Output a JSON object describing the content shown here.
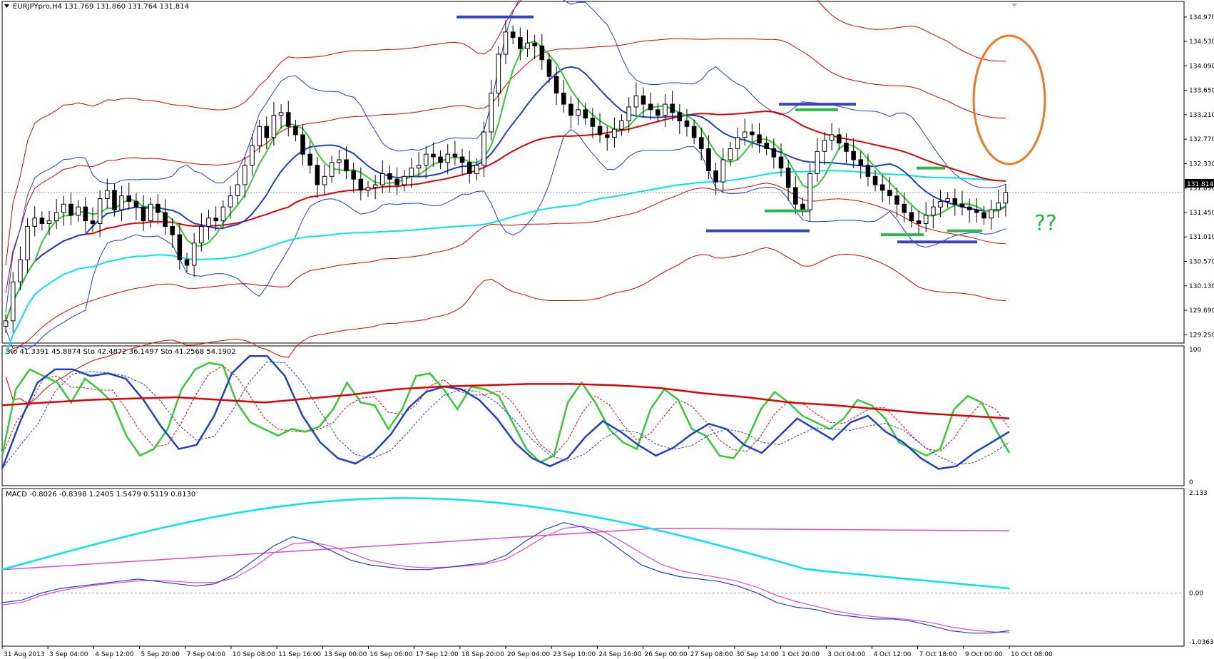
{
  "main_panel": {
    "info": "EURJPYpro,H4  131.769 131.860 131.764 131.814",
    "current_price": "131.814",
    "price_min": 129.1,
    "price_max": 135.25,
    "price_ticks": [
      "134.970",
      "134.530",
      "134.090",
      "133.650",
      "133.210",
      "132.770",
      "132.330",
      "131.890",
      "131.450",
      "131.010",
      "130.570",
      "130.130",
      "129.690",
      "129.250"
    ],
    "annotation_text": "??"
  },
  "stoch_panel": {
    "info": "Sto 41.3391 45.8874  Sto 42.4872 36.1497  Sto 41.2568 54.1902",
    "ticks": [
      "100",
      "0"
    ]
  },
  "macd_panel": {
    "info": "MACD -0.8026 -0.8398 1.2405 1.5479 0.5119 0.8130",
    "ticks": [
      "2.133",
      "0.00",
      "-1.0363"
    ]
  },
  "time_axis": [
    "31 Aug 2013",
    "3 Sep 04:00",
    "4 Sep 12:00",
    "5 Sep 20:00",
    "7 Sep 04:00",
    "10 Sep 08:00",
    "11 Sep 16:00",
    "13 Sep 00:00",
    "16 Sep 06:00",
    "17 Sep 12:00",
    "18 Sep 20:00",
    "20 Sep 04:00",
    "23 Sep 10:00",
    "24 Sep 16:00",
    "26 Sep 00:00",
    "27 Sep 08:00",
    "30 Sep 14:00",
    "1 Oct 20:00",
    "3 Oct 04:00",
    "4 Oct 12:00",
    "7 Oct 18:00",
    "9 Oct 00:00",
    "10 Oct 08:00"
  ],
  "chart_data": {
    "type": "candlestick",
    "symbol": "EURJPYpro",
    "timeframe": "H4",
    "ohlc_last": {
      "open": 131.769,
      "high": 131.86,
      "low": 131.764,
      "close": 131.814
    },
    "candles_close": [
      129.5,
      130.2,
      130.6,
      131.2,
      131.35,
      131.25,
      131.3,
      131.45,
      131.6,
      131.4,
      131.55,
      131.3,
      131.25,
      131.7,
      131.85,
      131.5,
      131.75,
      131.65,
      131.55,
      131.3,
      131.6,
      131.45,
      131.2,
      131.05,
      130.6,
      130.5,
      130.9,
      131.2,
      131.35,
      131.3,
      131.55,
      131.75,
      131.95,
      132.3,
      132.65,
      133.0,
      132.8,
      133.2,
      133.25,
      133.0,
      132.85,
      132.5,
      132.3,
      131.95,
      132.1,
      132.35,
      132.4,
      132.2,
      132.05,
      131.85,
      131.9,
      131.95,
      132.15,
      132.05,
      131.95,
      132.1,
      132.25,
      132.3,
      132.5,
      132.45,
      132.35,
      132.5,
      132.45,
      132.35,
      132.15,
      132.3,
      132.9,
      133.6,
      134.3,
      134.7,
      134.6,
      134.4,
      134.5,
      134.45,
      134.2,
      133.9,
      133.6,
      133.4,
      133.2,
      133.3,
      133.15,
      133.0,
      132.85,
      132.8,
      132.95,
      133.1,
      133.35,
      133.55,
      133.4,
      133.3,
      133.2,
      133.4,
      133.25,
      133.1,
      133.0,
      132.8,
      132.6,
      132.2,
      132.0,
      132.4,
      132.6,
      132.8,
      132.9,
      132.85,
      132.7,
      132.6,
      132.45,
      132.25,
      131.9,
      131.6,
      131.5,
      132.15,
      132.55,
      132.75,
      132.85,
      132.7,
      132.55,
      132.4,
      132.3,
      132.1,
      131.95,
      131.85,
      131.75,
      131.6,
      131.45,
      131.3,
      131.25,
      131.4,
      131.55,
      131.65,
      131.7,
      131.6,
      131.55,
      131.5,
      131.45,
      131.35,
      131.5,
      131.62,
      131.814
    ],
    "series": [
      {
        "name": "",
        "color": "#2b9fe0",
        "kind": "moving-average"
      },
      {
        "name": "",
        "color": "#e00000",
        "kind": "envelope"
      }
    ],
    "stochastic": {
      "lines": [
        {
          "color": "#32cd32",
          "values": [
            20,
            70,
            85,
            80,
            75,
            60,
            78,
            70,
            60,
            35,
            20,
            25,
            40,
            70,
            85,
            90,
            88,
            60,
            45,
            40,
            35,
            40,
            38,
            42,
            55,
            75,
            60,
            58,
            40,
            55,
            80,
            82,
            70,
            55,
            72,
            70,
            65,
            45,
            25,
            15,
            20,
            60,
            75,
            60,
            40,
            30,
            25,
            55,
            70,
            62,
            40,
            35,
            20,
            18,
            32,
            55,
            68,
            60,
            50,
            45,
            40,
            48,
            62,
            58,
            48,
            30,
            25,
            20,
            25,
            55,
            65,
            60,
            40,
            22
          ]
        },
        {
          "color": "#1f3fd0",
          "values": [
            10,
            45,
            75,
            85,
            85,
            80,
            82,
            78,
            62,
            42,
            25,
            28,
            50,
            82,
            95,
            95,
            80,
            50,
            30,
            18,
            14,
            22,
            36,
            56,
            68,
            72,
            70,
            62,
            48,
            30,
            18,
            12,
            18,
            34,
            46,
            38,
            28,
            20,
            26,
            36,
            44,
            40,
            28,
            22,
            35,
            48,
            40,
            32,
            45,
            50,
            38,
            30,
            18,
            10,
            12,
            22,
            30,
            38
          ]
        }
      ],
      "signal_color": "#e00000"
    },
    "macd": {
      "main": [
        -0.2,
        -0.15,
        0.0,
        0.1,
        0.15,
        0.2,
        0.25,
        0.3,
        0.25,
        0.2,
        0.15,
        0.2,
        0.4,
        0.7,
        1.0,
        1.2,
        1.1,
        0.9,
        0.7,
        0.6,
        0.55,
        0.5,
        0.5,
        0.55,
        0.6,
        0.65,
        0.8,
        1.1,
        1.35,
        1.5,
        1.4,
        1.2,
        0.9,
        0.6,
        0.45,
        0.35,
        0.3,
        0.25,
        0.15,
        0.0,
        -0.2,
        -0.3,
        -0.35,
        -0.45,
        -0.5,
        -0.55,
        -0.55,
        -0.6,
        -0.7,
        -0.8,
        -0.85,
        -0.85,
        -0.8
      ],
      "signal": [
        -0.25,
        -0.2,
        -0.05,
        0.05,
        0.12,
        0.18,
        0.22,
        0.26,
        0.27,
        0.25,
        0.22,
        0.23,
        0.32,
        0.55,
        0.85,
        1.05,
        1.08,
        1.0,
        0.85,
        0.7,
        0.62,
        0.56,
        0.54,
        0.55,
        0.58,
        0.62,
        0.72,
        0.95,
        1.2,
        1.38,
        1.42,
        1.32,
        1.1,
        0.85,
        0.62,
        0.48,
        0.4,
        0.33,
        0.25,
        0.12,
        -0.05,
        -0.18,
        -0.28,
        -0.38,
        -0.45,
        -0.5,
        -0.53,
        -0.57,
        -0.63,
        -0.72,
        -0.78,
        -0.82,
        -0.84
      ],
      "ema_cyan_color": "#00e5ee",
      "ema_magenta_color": "#e34ad0"
    }
  }
}
